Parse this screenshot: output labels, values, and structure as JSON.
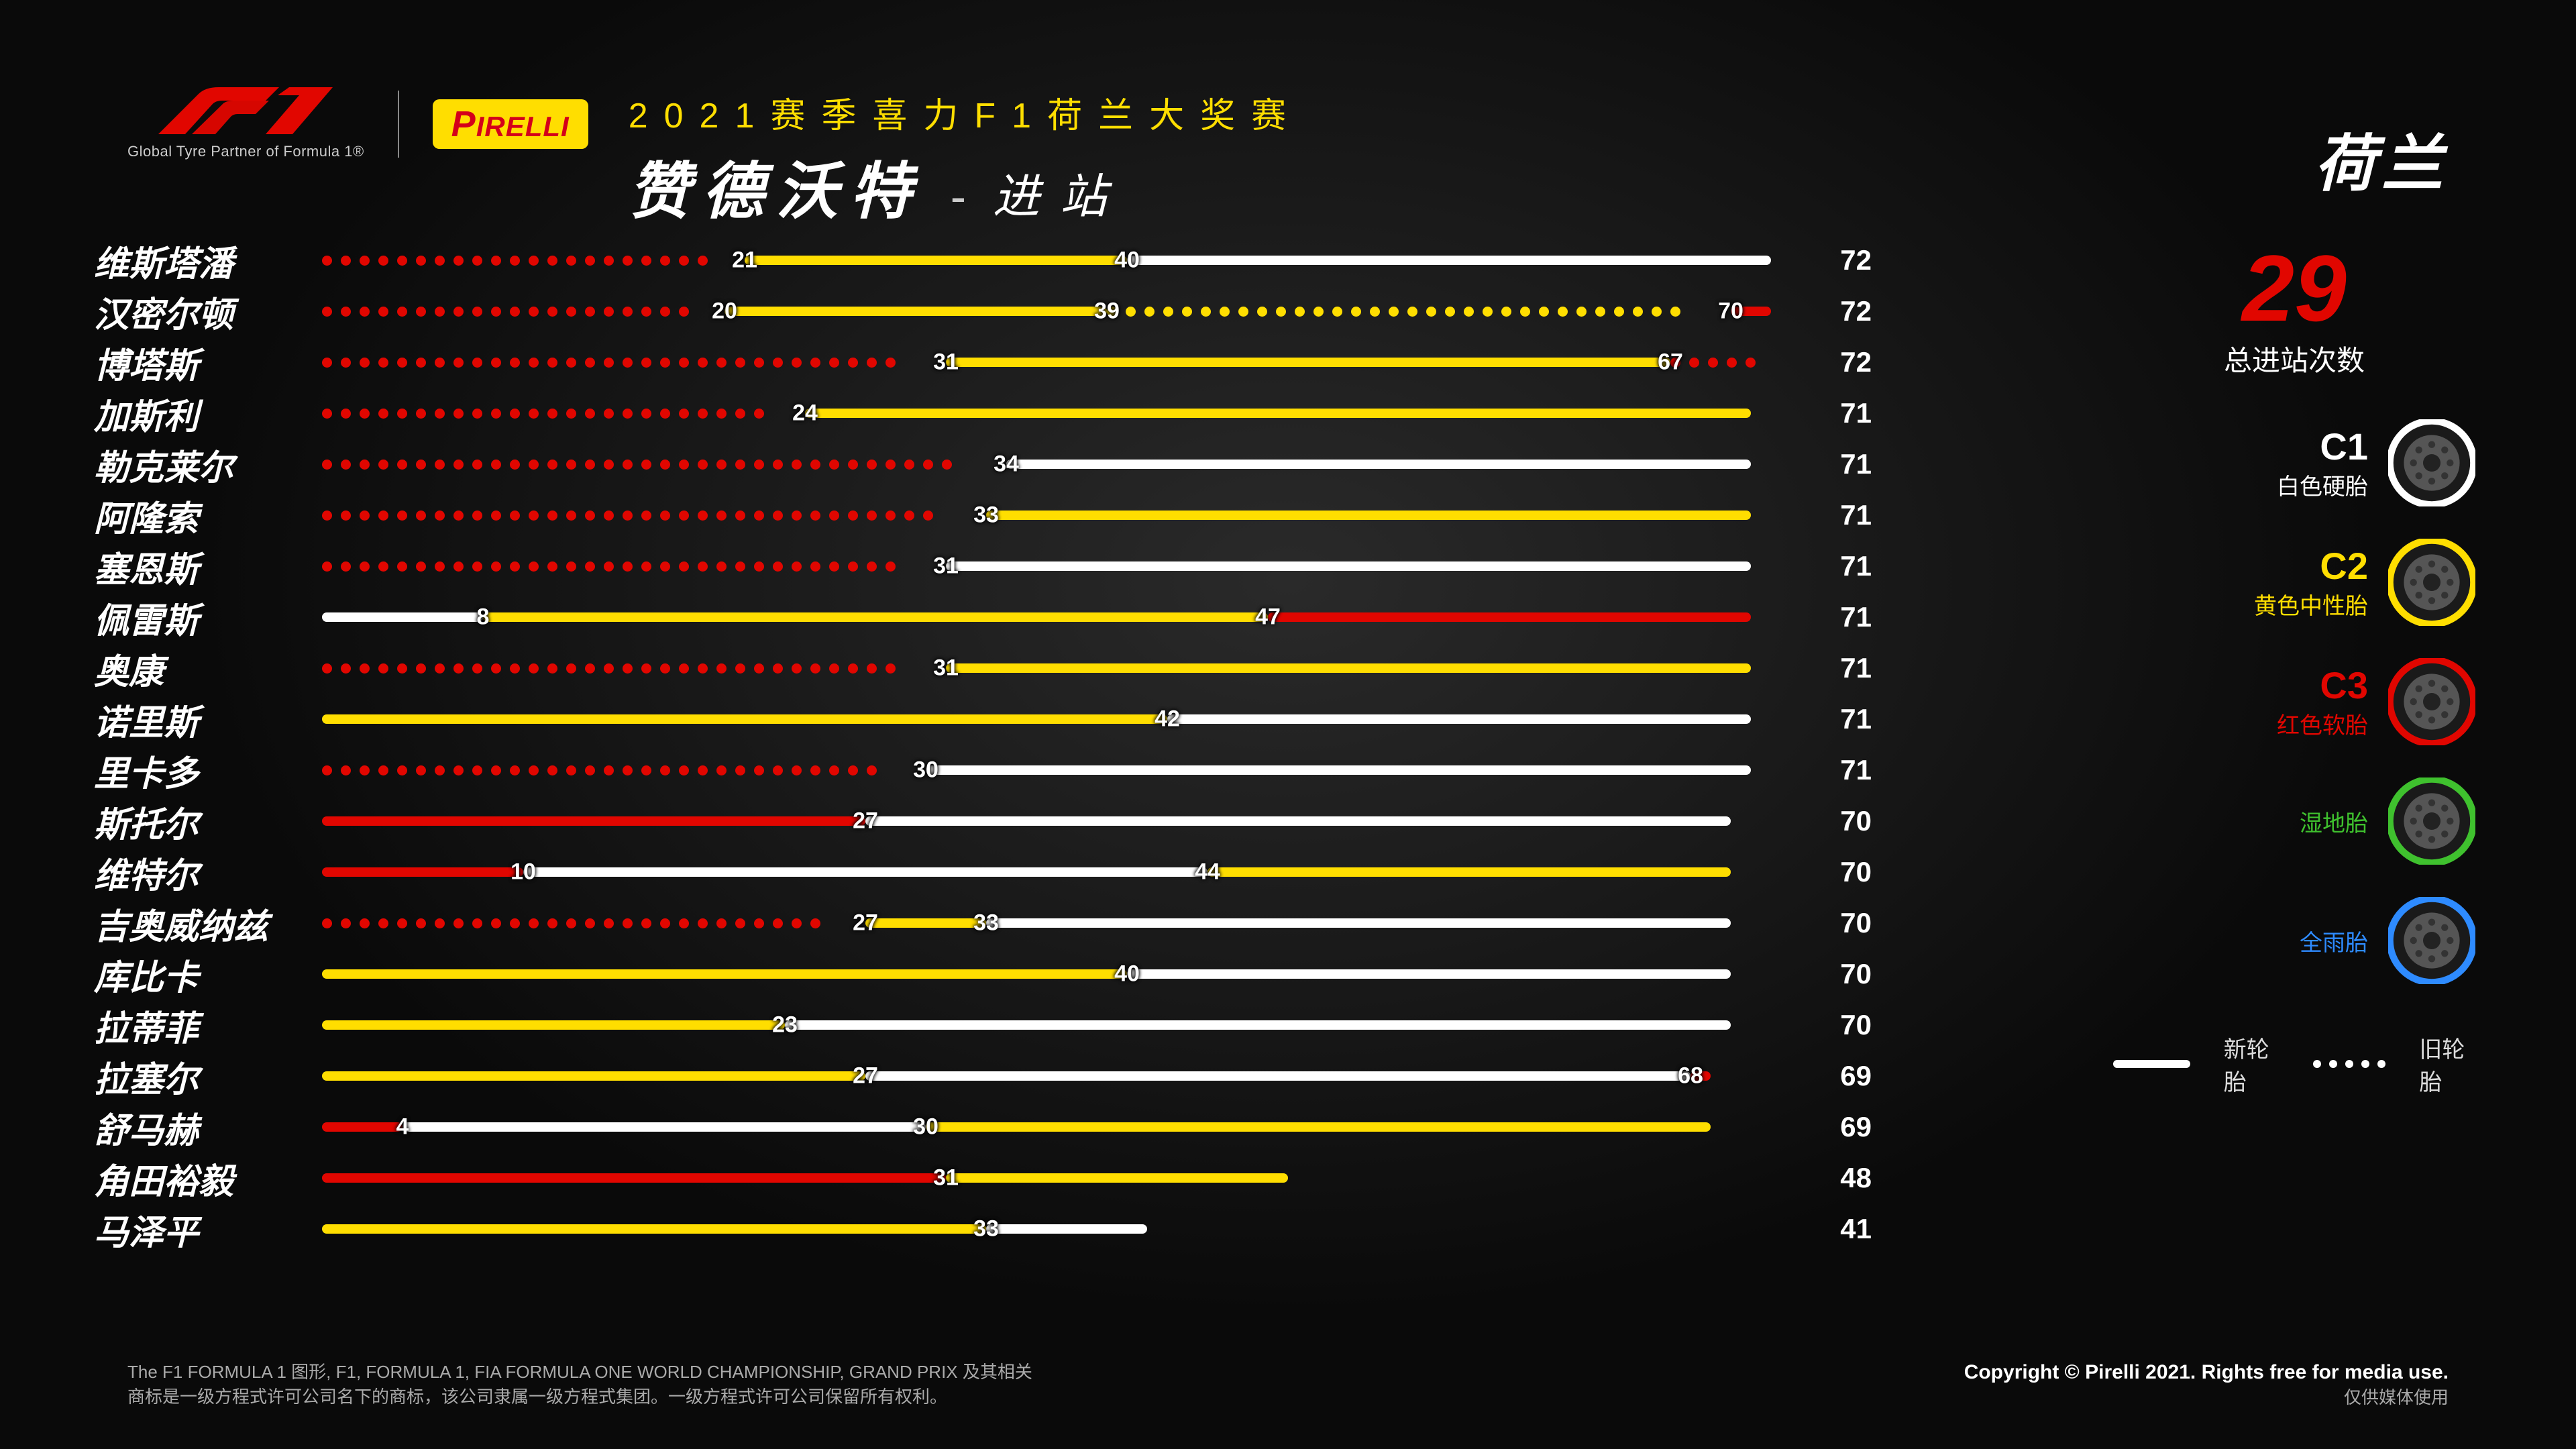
{
  "header": {
    "f1_sub": "Global Tyre Partner of Formula 1®",
    "pirelli": "IRELLI",
    "subtitle": "2021赛季喜力F1荷兰大奖赛",
    "title_main": "赞德沃特",
    "title_sep": "-",
    "title_right": "进站",
    "country": "荷兰"
  },
  "colors": {
    "C1": "#ffffff",
    "C2": "#ffde00",
    "C3": "#e10600",
    "INT": "#3fc12e",
    "WET": "#2e8bff",
    "bg": "#0a0a0a"
  },
  "chart": {
    "max_lap": 72,
    "drivers": [
      {
        "name": "维斯塔潘",
        "final": 72,
        "stints": [
          {
            "from": 0,
            "to": 21,
            "tyre": "C3",
            "used": true
          },
          {
            "from": 21,
            "to": 40,
            "tyre": "C2",
            "used": false
          },
          {
            "from": 40,
            "to": 72,
            "tyre": "C1",
            "used": false
          }
        ],
        "labels": [
          21,
          40
        ]
      },
      {
        "name": "汉密尔顿",
        "final": 72,
        "stints": [
          {
            "from": 0,
            "to": 20,
            "tyre": "C3",
            "used": true
          },
          {
            "from": 20,
            "to": 39,
            "tyre": "C2",
            "used": false
          },
          {
            "from": 39,
            "to": 70,
            "tyre": "C2",
            "used": true
          },
          {
            "from": 70,
            "to": 72,
            "tyre": "C3",
            "used": false
          }
        ],
        "labels": [
          20,
          39,
          70
        ]
      },
      {
        "name": "博塔斯",
        "final": 72,
        "stints": [
          {
            "from": 0,
            "to": 31,
            "tyre": "C3",
            "used": true
          },
          {
            "from": 31,
            "to": 67,
            "tyre": "C2",
            "used": false
          },
          {
            "from": 67,
            "to": 72,
            "tyre": "C3",
            "used": true
          }
        ],
        "labels": [
          31,
          67
        ]
      },
      {
        "name": "加斯利",
        "final": 71,
        "stints": [
          {
            "from": 0,
            "to": 24,
            "tyre": "C3",
            "used": true
          },
          {
            "from": 24,
            "to": 71,
            "tyre": "C2",
            "used": false
          }
        ],
        "labels": [
          24
        ]
      },
      {
        "name": "勒克莱尔",
        "final": 71,
        "stints": [
          {
            "from": 0,
            "to": 34,
            "tyre": "C3",
            "used": true
          },
          {
            "from": 34,
            "to": 71,
            "tyre": "C1",
            "used": false
          }
        ],
        "labels": [
          34
        ]
      },
      {
        "name": "阿隆索",
        "final": 71,
        "stints": [
          {
            "from": 0,
            "to": 33,
            "tyre": "C3",
            "used": true
          },
          {
            "from": 33,
            "to": 71,
            "tyre": "C2",
            "used": false
          }
        ],
        "labels": [
          33
        ]
      },
      {
        "name": "塞恩斯",
        "final": 71,
        "stints": [
          {
            "from": 0,
            "to": 31,
            "tyre": "C3",
            "used": true
          },
          {
            "from": 31,
            "to": 71,
            "tyre": "C1",
            "used": false
          }
        ],
        "labels": [
          31
        ]
      },
      {
        "name": "佩雷斯",
        "final": 71,
        "stints": [
          {
            "from": 0,
            "to": 8,
            "tyre": "C1",
            "used": false
          },
          {
            "from": 8,
            "to": 47,
            "tyre": "C2",
            "used": false
          },
          {
            "from": 47,
            "to": 71,
            "tyre": "C3",
            "used": false
          }
        ],
        "labels": [
          8,
          47
        ]
      },
      {
        "name": "奥康",
        "final": 71,
        "stints": [
          {
            "from": 0,
            "to": 31,
            "tyre": "C3",
            "used": true
          },
          {
            "from": 31,
            "to": 71,
            "tyre": "C2",
            "used": false
          }
        ],
        "labels": [
          31
        ]
      },
      {
        "name": "诺里斯",
        "final": 71,
        "stints": [
          {
            "from": 0,
            "to": 42,
            "tyre": "C2",
            "used": false
          },
          {
            "from": 42,
            "to": 71,
            "tyre": "C1",
            "used": false
          }
        ],
        "labels": [
          42
        ]
      },
      {
        "name": "里卡多",
        "final": 71,
        "stints": [
          {
            "from": 0,
            "to": 30,
            "tyre": "C3",
            "used": true
          },
          {
            "from": 30,
            "to": 71,
            "tyre": "C1",
            "used": false
          }
        ],
        "labels": [
          30
        ]
      },
      {
        "name": "斯托尔",
        "final": 70,
        "stints": [
          {
            "from": 0,
            "to": 27,
            "tyre": "C3",
            "used": false
          },
          {
            "from": 27,
            "to": 70,
            "tyre": "C1",
            "used": false
          }
        ],
        "labels": [
          27
        ]
      },
      {
        "name": "维特尔",
        "final": 70,
        "stints": [
          {
            "from": 0,
            "to": 10,
            "tyre": "C3",
            "used": false
          },
          {
            "from": 10,
            "to": 44,
            "tyre": "C1",
            "used": false
          },
          {
            "from": 44,
            "to": 70,
            "tyre": "C2",
            "used": false
          }
        ],
        "labels": [
          10,
          44
        ]
      },
      {
        "name": "吉奥威纳兹",
        "final": 70,
        "stints": [
          {
            "from": 0,
            "to": 27,
            "tyre": "C3",
            "used": true
          },
          {
            "from": 27,
            "to": 33,
            "tyre": "C2",
            "used": false
          },
          {
            "from": 33,
            "to": 70,
            "tyre": "C1",
            "used": false
          }
        ],
        "labels": [
          27,
          33
        ]
      },
      {
        "name": "库比卡",
        "final": 70,
        "stints": [
          {
            "from": 0,
            "to": 40,
            "tyre": "C2",
            "used": false
          },
          {
            "from": 40,
            "to": 70,
            "tyre": "C1",
            "used": false
          }
        ],
        "labels": [
          40
        ]
      },
      {
        "name": "拉蒂菲",
        "final": 70,
        "stints": [
          {
            "from": 0,
            "to": 23,
            "tyre": "C2",
            "used": false
          },
          {
            "from": 23,
            "to": 70,
            "tyre": "C1",
            "used": false
          }
        ],
        "labels": [
          23
        ]
      },
      {
        "name": "拉塞尔",
        "final": 69,
        "stints": [
          {
            "from": 0,
            "to": 27,
            "tyre": "C2",
            "used": false
          },
          {
            "from": 27,
            "to": 68,
            "tyre": "C1",
            "used": false
          },
          {
            "from": 68,
            "to": 69,
            "tyre": "C3",
            "used": false
          }
        ],
        "labels": [
          27,
          68
        ]
      },
      {
        "name": "舒马赫",
        "final": 69,
        "stints": [
          {
            "from": 0,
            "to": 4,
            "tyre": "C3",
            "used": false
          },
          {
            "from": 4,
            "to": 30,
            "tyre": "C1",
            "used": false
          },
          {
            "from": 30,
            "to": 69,
            "tyre": "C2",
            "used": false
          }
        ],
        "labels": [
          4,
          30
        ]
      },
      {
        "name": "角田裕毅",
        "final": 48,
        "stints": [
          {
            "from": 0,
            "to": 31,
            "tyre": "C3",
            "used": false
          },
          {
            "from": 31,
            "to": 48,
            "tyre": "C2",
            "used": false
          }
        ],
        "labels": [
          31
        ]
      },
      {
        "name": "马泽平",
        "final": 41,
        "stints": [
          {
            "from": 0,
            "to": 33,
            "tyre": "C2",
            "used": false
          },
          {
            "from": 33,
            "to": 41,
            "tyre": "C1",
            "used": false
          }
        ],
        "labels": [
          33
        ]
      }
    ]
  },
  "right": {
    "total_stops": "29",
    "total_stops_label": "总进站次数",
    "tyres": [
      {
        "code": "C1",
        "desc": "白色硬胎",
        "color": "#ffffff",
        "code_color": "#ffffff"
      },
      {
        "code": "C2",
        "desc": "黄色中性胎",
        "color": "#ffde00",
        "code_color": "#ffde00"
      },
      {
        "code": "C3",
        "desc": "红色软胎",
        "color": "#e10600",
        "code_color": "#e10600"
      },
      {
        "code": "",
        "desc": "湿地胎",
        "color": "#3fc12e",
        "code_color": "#3fc12e"
      },
      {
        "code": "",
        "desc": "全雨胎",
        "color": "#2e8bff",
        "code_color": "#2e8bff"
      }
    ],
    "legend_new": "新轮胎",
    "legend_old": "旧轮胎"
  },
  "footer": {
    "left1": "The F1 FORMULA 1 图形, F1, FORMULA 1, FIA FORMULA ONE WORLD CHAMPIONSHIP, GRAND PRIX 及其相关",
    "left2": "商标是一级方程式许可公司名下的商标，该公司隶属一级方程式集团。一级方程式许可公司保留所有权利。",
    "right1": "Copyright © Pirelli 2021. Rights free for media use.",
    "right2": "仅供媒体使用"
  }
}
